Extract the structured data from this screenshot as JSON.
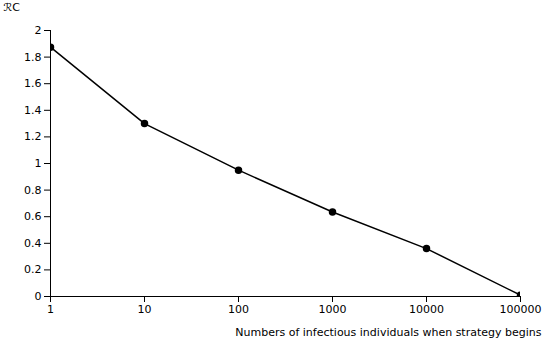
{
  "chart_data": {
    "type": "line",
    "x": [
      1,
      10,
      100,
      1000,
      10000,
      100000
    ],
    "values": [
      1.875,
      1.3,
      0.95,
      0.635,
      0.36,
      0.01
    ],
    "xlabel": "Numbers of infectious individuals when strategy begins",
    "ylabel": "ℛC",
    "xlim": [
      1,
      100000
    ],
    "ylim": [
      0,
      2
    ],
    "xticks": [
      1,
      10,
      100,
      1000,
      10000,
      100000
    ],
    "yticks": [
      0,
      0.2,
      0.4,
      0.6,
      0.8,
      1,
      1.2,
      1.4,
      1.6,
      1.8,
      2
    ],
    "log": "x",
    "color": "#000000",
    "marker": "circle",
    "grid": false
  }
}
